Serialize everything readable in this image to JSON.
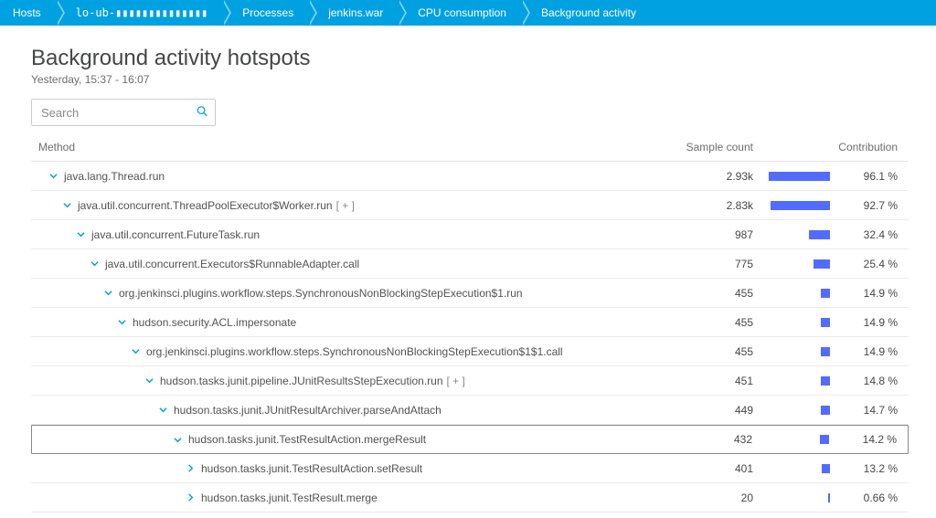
{
  "breadcrumb": [
    {
      "label": "Hosts"
    },
    {
      "label": "lo-ub-▮▮▮▮▮▮▮▮▮▮▮▮▮▮",
      "masked": true
    },
    {
      "label": "Processes"
    },
    {
      "label": "jenkins.war"
    },
    {
      "label": "CPU consumption"
    },
    {
      "label": "Background activity"
    }
  ],
  "header": {
    "title": "Background activity hotspots",
    "subtitle": "Yesterday, 15:37 - 16:07"
  },
  "search": {
    "placeholder": "Search"
  },
  "columns": {
    "method": "Method",
    "sample_count": "Sample count",
    "contribution": "Contribution"
  },
  "colors": {
    "bar_fill": "#526cff",
    "chevron_down": "#00a1e0",
    "chevron_right": "#00a1e0",
    "breadcrumb_bg": "#00a1e0"
  },
  "rows": [
    {
      "indent": 0,
      "expanded": true,
      "method": "java.lang.Thread.run",
      "sample": "2.93k",
      "pct": 96.1,
      "contrib": "96.1 %",
      "selected": false
    },
    {
      "indent": 1,
      "expanded": true,
      "method": "java.util.concurrent.ThreadPoolExecutor$Worker.run",
      "hint": "[ + ]",
      "sample": "2.83k",
      "pct": 92.7,
      "contrib": "92.7 %",
      "selected": false
    },
    {
      "indent": 2,
      "expanded": true,
      "method": "java.util.concurrent.FutureTask.run",
      "sample": "987",
      "pct": 32.4,
      "contrib": "32.4 %",
      "selected": false
    },
    {
      "indent": 3,
      "expanded": true,
      "method": "java.util.concurrent.Executors$RunnableAdapter.call",
      "sample": "775",
      "pct": 25.4,
      "contrib": "25.4 %",
      "selected": false
    },
    {
      "indent": 4,
      "expanded": true,
      "method": "org.jenkinsci.plugins.workflow.steps.SynchronousNonBlockingStepExecution$1.run",
      "sample": "455",
      "pct": 14.9,
      "contrib": "14.9 %",
      "selected": false
    },
    {
      "indent": 5,
      "expanded": true,
      "method": "hudson.security.ACL.impersonate",
      "sample": "455",
      "pct": 14.9,
      "contrib": "14.9 %",
      "selected": false
    },
    {
      "indent": 6,
      "expanded": true,
      "method": "org.jenkinsci.plugins.workflow.steps.SynchronousNonBlockingStepExecution$1$1.call",
      "sample": "455",
      "pct": 14.9,
      "contrib": "14.9 %",
      "selected": false
    },
    {
      "indent": 7,
      "expanded": true,
      "method": "hudson.tasks.junit.pipeline.JUnitResultsStepExecution.run",
      "hint": "[ + ]",
      "sample": "451",
      "pct": 14.8,
      "contrib": "14.8 %",
      "selected": false
    },
    {
      "indent": 8,
      "expanded": true,
      "method": "hudson.tasks.junit.JUnitResultArchiver.parseAndAttach",
      "sample": "449",
      "pct": 14.7,
      "contrib": "14.7 %",
      "selected": false
    },
    {
      "indent": 9,
      "expanded": true,
      "method": "hudson.tasks.junit.TestResultAction.mergeResult",
      "sample": "432",
      "pct": 14.2,
      "contrib": "14.2 %",
      "selected": true
    },
    {
      "indent": 10,
      "expanded": false,
      "method": "hudson.tasks.junit.TestResultAction.setResult",
      "sample": "401",
      "pct": 13.2,
      "contrib": "13.2 %",
      "selected": false
    },
    {
      "indent": 10,
      "expanded": false,
      "method": "hudson.tasks.junit.TestResult.merge",
      "sample": "20",
      "pct": 0.66,
      "contrib": "0.66 %",
      "selected": false
    }
  ]
}
